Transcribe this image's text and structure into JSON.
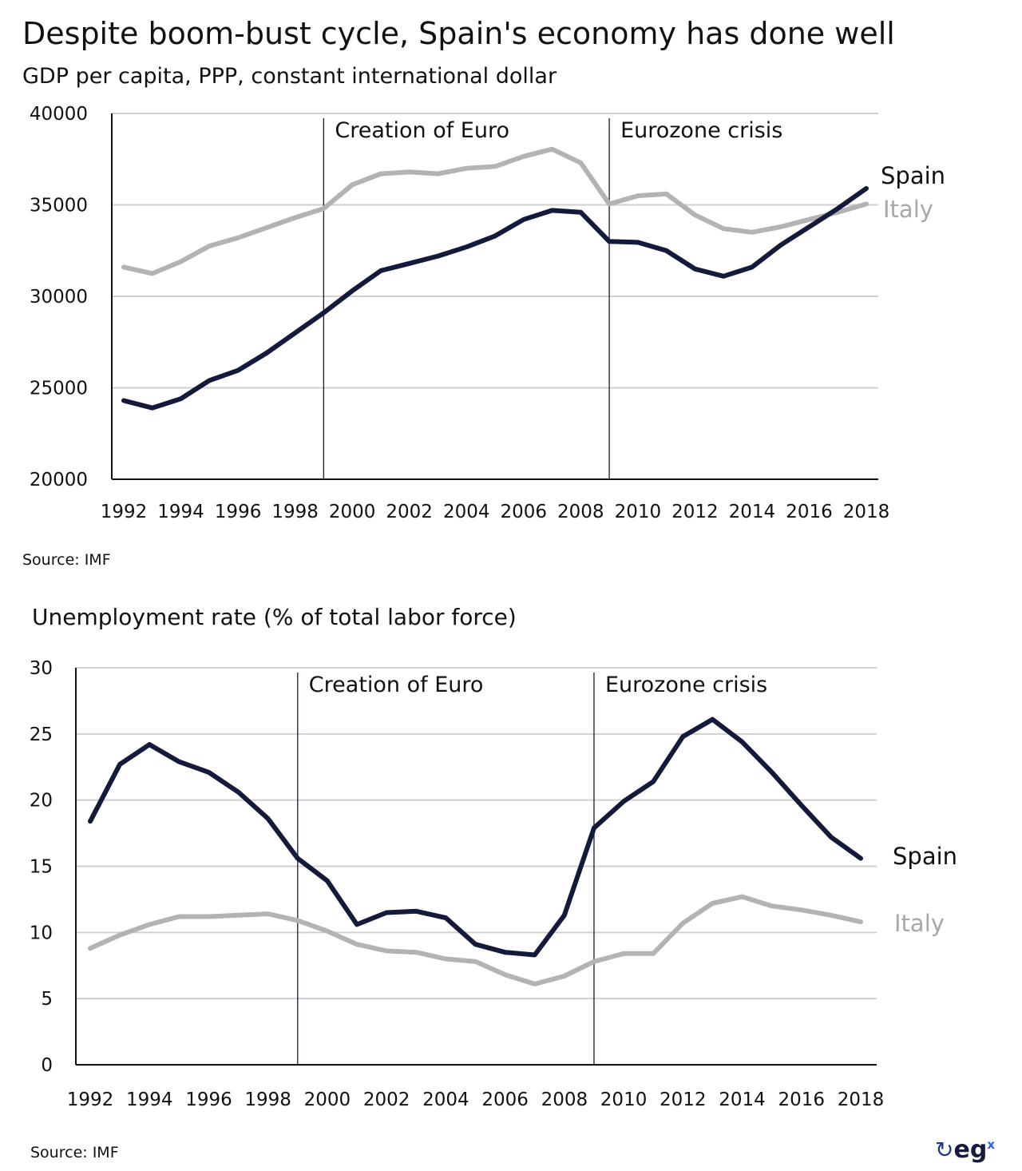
{
  "title": "Despite boom-bust cycle, Spain's economy has done well",
  "chart_data": [
    {
      "type": "line",
      "title": "GDP per capita, PPP, constant international dollar",
      "source": "Source: IMF",
      "x": [
        1992,
        1993,
        1994,
        1995,
        1996,
        1997,
        1998,
        1999,
        2000,
        2001,
        2002,
        2003,
        2004,
        2005,
        2006,
        2007,
        2008,
        2009,
        2010,
        2011,
        2012,
        2013,
        2014,
        2015,
        2016,
        2017,
        2018
      ],
      "x_tick_labels": [
        "1992",
        "1994",
        "1996",
        "1998",
        "2000",
        "2002",
        "2004",
        "2006",
        "2008",
        "2010",
        "2012",
        "2014",
        "2016",
        "2018"
      ],
      "y_ticks": [
        "20000",
        "25000",
        "30000",
        "35000",
        "40000"
      ],
      "ylim": [
        20000,
        40000
      ],
      "grid": true,
      "series": [
        {
          "name": "Spain",
          "color": "#141a3a",
          "values": [
            24300,
            23900,
            24400,
            25400,
            25950,
            26900,
            28000,
            29100,
            30300,
            31400,
            31800,
            32200,
            32700,
            33300,
            34200,
            34700,
            34600,
            33000,
            32950,
            32500,
            31500,
            31100,
            31600,
            32800,
            33800,
            34800,
            35900
          ]
        },
        {
          "name": "Italy",
          "color": "#b3b3b3",
          "values": [
            31600,
            31250,
            31900,
            32750,
            33200,
            33750,
            34300,
            34800,
            36100,
            36700,
            36800,
            36700,
            37000,
            37100,
            37650,
            38050,
            37300,
            35050,
            35500,
            35600,
            34450,
            33700,
            33500,
            33800,
            34200,
            34600,
            35050
          ]
        }
      ],
      "annotations": [
        {
          "x": 1999,
          "label": "Creation of Euro"
        },
        {
          "x": 2009,
          "label": "Eurozone crisis"
        }
      ]
    },
    {
      "type": "line",
      "title": "Unemployment rate (% of total labor force)",
      "source": "Source: IMF",
      "x": [
        1992,
        1993,
        1994,
        1995,
        1996,
        1997,
        1998,
        1999,
        2000,
        2001,
        2002,
        2003,
        2004,
        2005,
        2006,
        2007,
        2008,
        2009,
        2010,
        2011,
        2012,
        2013,
        2014,
        2015,
        2016,
        2017,
        2018
      ],
      "x_tick_labels": [
        "1992",
        "1994",
        "1996",
        "1998",
        "2000",
        "2002",
        "2004",
        "2006",
        "2008",
        "2010",
        "2012",
        "2014",
        "2016",
        "2018"
      ],
      "y_ticks": [
        "0",
        "5",
        "10",
        "15",
        "20",
        "25",
        "30"
      ],
      "ylim": [
        0,
        30
      ],
      "grid": true,
      "series": [
        {
          "name": "Spain",
          "color": "#141a3a",
          "values": [
            18.4,
            22.7,
            24.2,
            22.9,
            22.1,
            20.6,
            18.6,
            15.6,
            13.9,
            10.6,
            11.5,
            11.6,
            11.1,
            9.1,
            8.5,
            8.3,
            11.3,
            17.9,
            19.9,
            21.4,
            24.8,
            26.1,
            24.4,
            22.1,
            19.6,
            17.2,
            15.6
          ]
        },
        {
          "name": "Italy",
          "color": "#b3b3b3",
          "values": [
            8.8,
            9.8,
            10.6,
            11.2,
            11.2,
            11.3,
            11.4,
            10.9,
            10.1,
            9.1,
            8.6,
            8.5,
            8.0,
            7.8,
            6.8,
            6.1,
            6.7,
            7.8,
            8.4,
            8.4,
            10.7,
            12.2,
            12.7,
            12.0,
            11.7,
            11.3,
            10.8
          ]
        }
      ],
      "annotations": [
        {
          "x": 1999,
          "label": "Creation of Euro"
        },
        {
          "x": 2009,
          "label": "Eurozone crisis"
        }
      ]
    }
  ],
  "logo": {
    "text": "eg",
    "sup": "x",
    "icon": "q-swirl-icon"
  }
}
